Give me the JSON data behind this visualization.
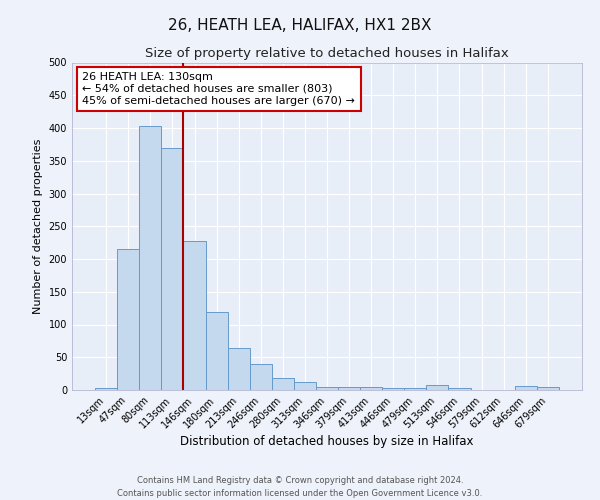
{
  "title": "26, HEATH LEA, HALIFAX, HX1 2BX",
  "subtitle": "Size of property relative to detached houses in Halifax",
  "xlabel": "Distribution of detached houses by size in Halifax",
  "ylabel": "Number of detached properties",
  "bar_labels": [
    "13sqm",
    "47sqm",
    "80sqm",
    "113sqm",
    "146sqm",
    "180sqm",
    "213sqm",
    "246sqm",
    "280sqm",
    "313sqm",
    "346sqm",
    "379sqm",
    "413sqm",
    "446sqm",
    "479sqm",
    "513sqm",
    "546sqm",
    "579sqm",
    "612sqm",
    "646sqm",
    "679sqm"
  ],
  "bar_values": [
    3,
    215,
    403,
    370,
    228,
    119,
    64,
    39,
    18,
    12,
    5,
    5,
    5,
    3,
    3,
    8,
    3,
    0,
    0,
    6,
    4
  ],
  "bar_color": "#c5d9ee",
  "bar_edge_color": "#6699cc",
  "vline_color": "#aa0000",
  "annotation_text": "26 HEATH LEA: 130sqm\n← 54% of detached houses are smaller (803)\n45% of semi-detached houses are larger (670) →",
  "annotation_box_color": "#ffffff",
  "annotation_box_edge": "#cc0000",
  "ylim": [
    0,
    500
  ],
  "yticks": [
    0,
    50,
    100,
    150,
    200,
    250,
    300,
    350,
    400,
    450,
    500
  ],
  "background_color": "#eef2fa",
  "plot_background": "#e8eef8",
  "grid_color": "#ffffff",
  "footer_line1": "Contains HM Land Registry data © Crown copyright and database right 2024.",
  "footer_line2": "Contains public sector information licensed under the Open Government Licence v3.0.",
  "title_fontsize": 11,
  "subtitle_fontsize": 9.5,
  "xlabel_fontsize": 8.5,
  "ylabel_fontsize": 8,
  "tick_fontsize": 7,
  "annotation_fontsize": 8,
  "footer_fontsize": 6
}
